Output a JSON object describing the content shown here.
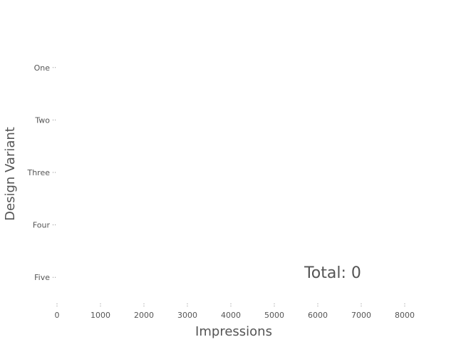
{
  "chart_data": {
    "type": "bar",
    "orientation": "horizontal",
    "categories": [
      "One",
      "Two",
      "Three",
      "Four",
      "Five"
    ],
    "values": [
      0,
      0,
      0,
      0,
      0
    ],
    "xlabel": "Impressions",
    "ylabel": "Design Variant",
    "xlim": [
      0,
      8000
    ],
    "xticks": [
      "0",
      "1000",
      "2000",
      "3000",
      "4000",
      "5000",
      "6000",
      "7000",
      "8000"
    ],
    "grid": false,
    "annotation": "Total: 0"
  },
  "colors": {
    "text": "#555555",
    "ticks": "#888888",
    "background": "#ffffff"
  }
}
